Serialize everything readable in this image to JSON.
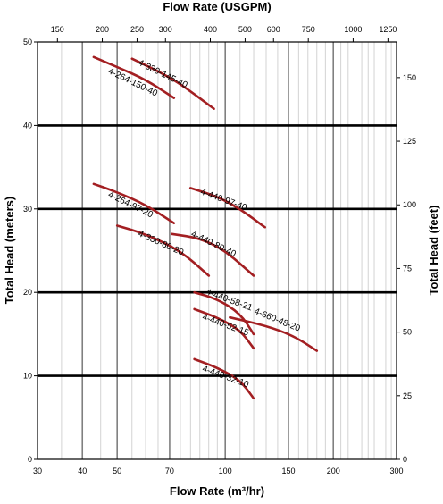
{
  "chart_data": {
    "type": "line",
    "title": "",
    "xlabel": "Flow Rate (m³/hr)",
    "x2label": "Flow Rate (USGPM)",
    "ylabel": "Total Head (meters)",
    "y2label": "Total Head (feet)",
    "x_scale": "log",
    "xlim": [
      30,
      300
    ],
    "ylim": [
      0,
      50
    ],
    "x2lim": [
      132,
      1321
    ],
    "y2lim": [
      0,
      164
    ],
    "grid": true,
    "x_ticks": [
      "30",
      "40",
      "50",
      "70",
      "100",
      "150",
      "200",
      "300"
    ],
    "x2_ticks": [
      "150",
      "200",
      "250",
      "300",
      "400",
      "500",
      "600",
      "750",
      "1000",
      "1250"
    ],
    "y_ticks": [
      "0",
      "10",
      "20",
      "30",
      "40",
      "50"
    ],
    "y2_ticks": [
      "0",
      "25",
      "50",
      "75",
      "100",
      "125",
      "150"
    ],
    "line_color": "#a31f22",
    "series": [
      {
        "name": "4-330-145-40",
        "x": [
          55,
          65,
          75,
          93
        ],
        "y": [
          48,
          46.5,
          45,
          42
        ]
      },
      {
        "name": "4-264-150-40",
        "x": [
          43,
          50,
          60,
          72
        ],
        "y": [
          48.2,
          47,
          45.5,
          43.3
        ]
      },
      {
        "name": "4-264-97-20",
        "x": [
          43,
          50,
          60,
          72
        ],
        "y": [
          33,
          32,
          30.5,
          28.3
        ]
      },
      {
        "name": "4-440-97-40",
        "x": [
          80,
          95,
          110,
          129
        ],
        "y": [
          32.5,
          31.5,
          30,
          27.8
        ]
      },
      {
        "name": "4-330-80-20",
        "x": [
          50,
          60,
          75,
          90
        ],
        "y": [
          28,
          27,
          25,
          22
        ]
      },
      {
        "name": "4-440-80-40",
        "x": [
          71,
          85,
          100,
          120
        ],
        "y": [
          27,
          26.5,
          25,
          22
        ]
      },
      {
        "name": "4-440-58-21",
        "x": [
          82,
          95,
          110,
          120
        ],
        "y": [
          20,
          19.2,
          17.5,
          15
        ]
      },
      {
        "name": "4-660-48-20",
        "x": [
          103,
          130,
          155,
          180
        ],
        "y": [
          17,
          16,
          14.8,
          13
        ]
      },
      {
        "name": "4-440-52-15",
        "x": [
          82,
          95,
          110,
          120
        ],
        "y": [
          18,
          17,
          15.5,
          13.3
        ]
      },
      {
        "name": "4-440-32-10",
        "x": [
          82,
          95,
          110,
          120
        ],
        "y": [
          12,
          11,
          9.5,
          7.3
        ]
      }
    ],
    "labels": [
      {
        "text": "4-330-145-40",
        "x": 57,
        "y": 47.3,
        "angle": 26
      },
      {
        "text": "4-264-150-40",
        "x": 47,
        "y": 46.3,
        "angle": 26
      },
      {
        "text": "4-264-97-20",
        "x": 47,
        "y": 31.5,
        "angle": 26
      },
      {
        "text": "4-440-97-40",
        "x": 85,
        "y": 31.8,
        "angle": 20
      },
      {
        "text": "4-330-80-20",
        "x": 57,
        "y": 26.8,
        "angle": 24
      },
      {
        "text": "4-440-80-40",
        "x": 80,
        "y": 26.8,
        "angle": 26
      },
      {
        "text": "4-440-58-21",
        "x": 88,
        "y": 19.8,
        "angle": 20
      },
      {
        "text": "4-660-48-20",
        "x": 120,
        "y": 17.5,
        "angle": 22
      },
      {
        "text": "4-440-52-15",
        "x": 86,
        "y": 16.8,
        "angle": 20
      },
      {
        "text": "4-440-32-10",
        "x": 86,
        "y": 10.6,
        "angle": 20
      }
    ]
  }
}
